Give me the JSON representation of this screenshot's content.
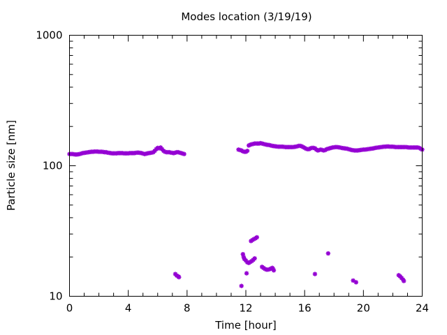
{
  "chart_data": {
    "type": "scatter",
    "title": "Modes location (3/19/19)",
    "xlabel": "Time [hour]",
    "ylabel": "Particle size [nm]",
    "xlim": [
      0,
      24
    ],
    "ylim": [
      10,
      1000
    ],
    "yscale": "log",
    "grid": false,
    "legend": "none",
    "marker_color": "#9400d3",
    "x_ticks": [
      "0",
      "4",
      "8",
      "12",
      "16",
      "20",
      "24"
    ],
    "x_tick_values": [
      0,
      4,
      8,
      12,
      16,
      20,
      24
    ],
    "y_ticks": [
      "10",
      "100",
      "1000"
    ],
    "y_tick_values": [
      10,
      100,
      1000
    ],
    "series": [
      {
        "points": [
          [
            0.0,
            123
          ],
          [
            0.1,
            123
          ],
          [
            0.2,
            123
          ],
          [
            0.3,
            122.5
          ],
          [
            0.4,
            122
          ],
          [
            0.5,
            122
          ],
          [
            0.6,
            122.5
          ],
          [
            0.7,
            123
          ],
          [
            0.8,
            124
          ],
          [
            0.9,
            125
          ],
          [
            1.0,
            125.5
          ],
          [
            1.1,
            126
          ],
          [
            1.2,
            126.5
          ],
          [
            1.3,
            127
          ],
          [
            1.4,
            127.5
          ],
          [
            1.5,
            128
          ],
          [
            1.6,
            128
          ],
          [
            1.7,
            128.5
          ],
          [
            1.8,
            128.5
          ],
          [
            1.9,
            128.5
          ],
          [
            2.0,
            128
          ],
          [
            2.1,
            128
          ],
          [
            2.2,
            128
          ],
          [
            2.3,
            127.5
          ],
          [
            2.4,
            127
          ],
          [
            2.5,
            127
          ],
          [
            2.6,
            126
          ],
          [
            2.7,
            125.5
          ],
          [
            2.8,
            125
          ],
          [
            2.9,
            124.5
          ],
          [
            3.0,
            124.5
          ],
          [
            3.1,
            124.5
          ],
          [
            3.2,
            124.5
          ],
          [
            3.3,
            125
          ],
          [
            3.4,
            125
          ],
          [
            3.5,
            125
          ],
          [
            3.6,
            125
          ],
          [
            3.7,
            124.5
          ],
          [
            3.8,
            124.5
          ],
          [
            3.9,
            124.5
          ],
          [
            4.0,
            124.5
          ],
          [
            4.1,
            125
          ],
          [
            4.2,
            125
          ],
          [
            4.3,
            125
          ],
          [
            4.4,
            125
          ],
          [
            4.5,
            125.5
          ],
          [
            4.6,
            126
          ],
          [
            4.7,
            126
          ],
          [
            4.8,
            125.5
          ],
          [
            4.9,
            125
          ],
          [
            5.0,
            124
          ],
          [
            5.1,
            123
          ],
          [
            5.2,
            123.5
          ],
          [
            5.3,
            124.5
          ],
          [
            5.4,
            125
          ],
          [
            5.5,
            125.5
          ],
          [
            5.6,
            126
          ],
          [
            5.7,
            127
          ],
          [
            5.8,
            130
          ],
          [
            5.9,
            134
          ],
          [
            6.0,
            137
          ],
          [
            6.1,
            136
          ],
          [
            6.2,
            138
          ],
          [
            6.3,
            134
          ],
          [
            6.4,
            130
          ],
          [
            6.5,
            128
          ],
          [
            6.6,
            127
          ],
          [
            6.7,
            127
          ],
          [
            6.8,
            127
          ],
          [
            6.9,
            126
          ],
          [
            7.0,
            125.5
          ],
          [
            7.1,
            125
          ],
          [
            7.2,
            126
          ],
          [
            7.3,
            127
          ],
          [
            7.4,
            127
          ],
          [
            7.5,
            126
          ],
          [
            7.6,
            125
          ],
          [
            7.7,
            124
          ],
          [
            7.8,
            123
          ],
          [
            11.5,
            133
          ],
          [
            11.6,
            132
          ],
          [
            11.7,
            131
          ],
          [
            11.8,
            129
          ],
          [
            11.9,
            128
          ],
          [
            12.0,
            128
          ],
          [
            12.1,
            130
          ],
          [
            12.2,
            143
          ],
          [
            12.3,
            145
          ],
          [
            12.4,
            146
          ],
          [
            12.5,
            147
          ],
          [
            12.6,
            148
          ],
          [
            12.7,
            148
          ],
          [
            12.8,
            148
          ],
          [
            12.9,
            148
          ],
          [
            13.0,
            149
          ],
          [
            13.1,
            148
          ],
          [
            13.2,
            147
          ],
          [
            13.3,
            146
          ],
          [
            13.4,
            145
          ],
          [
            13.5,
            144.5
          ],
          [
            13.6,
            144
          ],
          [
            13.7,
            143
          ],
          [
            13.8,
            142
          ],
          [
            13.9,
            141.5
          ],
          [
            14.0,
            141
          ],
          [
            14.1,
            140.5
          ],
          [
            14.2,
            140
          ],
          [
            14.3,
            140
          ],
          [
            14.4,
            140
          ],
          [
            14.5,
            140
          ],
          [
            14.6,
            139.5
          ],
          [
            14.7,
            139
          ],
          [
            14.8,
            139
          ],
          [
            14.9,
            139
          ],
          [
            15.0,
            139
          ],
          [
            15.1,
            139
          ],
          [
            15.2,
            139
          ],
          [
            15.3,
            139.5
          ],
          [
            15.4,
            140
          ],
          [
            15.5,
            141
          ],
          [
            15.6,
            142
          ],
          [
            15.7,
            142
          ],
          [
            15.8,
            141
          ],
          [
            15.9,
            139
          ],
          [
            16.0,
            137
          ],
          [
            16.1,
            135
          ],
          [
            16.2,
            134
          ],
          [
            16.3,
            134
          ],
          [
            16.4,
            136
          ],
          [
            16.5,
            137
          ],
          [
            16.6,
            137
          ],
          [
            16.7,
            136
          ],
          [
            16.8,
            133
          ],
          [
            16.9,
            131
          ],
          [
            17.0,
            132
          ],
          [
            17.1,
            133
          ],
          [
            17.2,
            132
          ],
          [
            17.3,
            131
          ],
          [
            17.4,
            132
          ],
          [
            17.5,
            134
          ],
          [
            17.6,
            135
          ],
          [
            17.7,
            136
          ],
          [
            17.8,
            137
          ],
          [
            17.9,
            138
          ],
          [
            18.0,
            138.5
          ],
          [
            18.1,
            139
          ],
          [
            18.2,
            139
          ],
          [
            18.3,
            138.5
          ],
          [
            18.4,
            138
          ],
          [
            18.5,
            137
          ],
          [
            18.6,
            136.5
          ],
          [
            18.7,
            136
          ],
          [
            18.8,
            135.5
          ],
          [
            18.9,
            135
          ],
          [
            19.0,
            134
          ],
          [
            19.1,
            133
          ],
          [
            19.2,
            132
          ],
          [
            19.3,
            131.5
          ],
          [
            19.4,
            131
          ],
          [
            19.5,
            131
          ],
          [
            19.6,
            131
          ],
          [
            19.7,
            131.5
          ],
          [
            19.8,
            132
          ],
          [
            19.9,
            132.5
          ],
          [
            20.0,
            133
          ],
          [
            20.1,
            133
          ],
          [
            20.2,
            133.5
          ],
          [
            20.3,
            134
          ],
          [
            20.4,
            134.5
          ],
          [
            20.5,
            135
          ],
          [
            20.6,
            135.5
          ],
          [
            20.7,
            136
          ],
          [
            20.8,
            137
          ],
          [
            20.9,
            137.5
          ],
          [
            21.0,
            138
          ],
          [
            21.1,
            138.5
          ],
          [
            21.2,
            139
          ],
          [
            21.3,
            139.5
          ],
          [
            21.4,
            140
          ],
          [
            21.5,
            140
          ],
          [
            21.6,
            140.5
          ],
          [
            21.7,
            140.5
          ],
          [
            21.8,
            140
          ],
          [
            21.9,
            140
          ],
          [
            22.0,
            140
          ],
          [
            22.1,
            139.5
          ],
          [
            22.2,
            139
          ],
          [
            22.3,
            139
          ],
          [
            22.4,
            139
          ],
          [
            22.5,
            139
          ],
          [
            22.6,
            139
          ],
          [
            22.7,
            139
          ],
          [
            22.8,
            139
          ],
          [
            22.9,
            139
          ],
          [
            23.0,
            138.5
          ],
          [
            23.1,
            138
          ],
          [
            23.2,
            138
          ],
          [
            23.3,
            138
          ],
          [
            23.4,
            138
          ],
          [
            23.5,
            138
          ],
          [
            23.6,
            138
          ],
          [
            23.7,
            138
          ],
          [
            23.8,
            137
          ],
          [
            23.9,
            135
          ],
          [
            24.0,
            133
          ],
          [
            7.2,
            14.8
          ],
          [
            7.3,
            14.4
          ],
          [
            7.4,
            14.2
          ],
          [
            7.45,
            14.0
          ],
          [
            11.7,
            12.0
          ],
          [
            11.8,
            21.0
          ],
          [
            11.85,
            20.0
          ],
          [
            11.9,
            19.3
          ],
          [
            12.0,
            18.8
          ],
          [
            12.05,
            15.0
          ],
          [
            12.1,
            18.2
          ],
          [
            12.2,
            18.0
          ],
          [
            12.3,
            18.3
          ],
          [
            12.4,
            18.6
          ],
          [
            12.5,
            19.0
          ],
          [
            12.6,
            19.5
          ],
          [
            12.35,
            26.5
          ],
          [
            12.45,
            27.0
          ],
          [
            12.55,
            27.4
          ],
          [
            12.65,
            27.8
          ],
          [
            12.75,
            28.3
          ],
          [
            13.1,
            16.8
          ],
          [
            13.2,
            16.5
          ],
          [
            13.3,
            16.2
          ],
          [
            13.4,
            16.0
          ],
          [
            13.5,
            16.0
          ],
          [
            13.6,
            16.1
          ],
          [
            13.7,
            16.3
          ],
          [
            13.8,
            16.5
          ],
          [
            13.85,
            16.2
          ],
          [
            13.9,
            15.8
          ],
          [
            16.7,
            14.8
          ],
          [
            17.6,
            21.3
          ],
          [
            19.3,
            13.2
          ],
          [
            19.5,
            12.8
          ],
          [
            22.4,
            14.5
          ],
          [
            22.5,
            14.2
          ],
          [
            22.6,
            13.8
          ],
          [
            22.7,
            13.4
          ],
          [
            22.75,
            13.1
          ]
        ]
      }
    ]
  }
}
